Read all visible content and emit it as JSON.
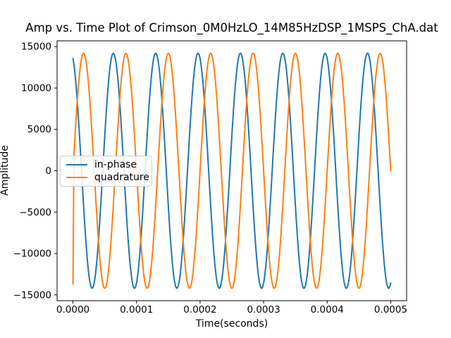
{
  "chart_data": {
    "type": "line",
    "title": "Amp vs. Time Plot of Crimson_0M0HzLO_14M85HzDSP_1MSPS_ChA.dat",
    "xlabel": "Time(seconds)",
    "ylabel": "Amplitude",
    "xlim": [
      -2.5e-05,
      0.000525
    ],
    "ylim": [
      -15700,
      15700
    ],
    "grid": false,
    "background_color": "#ffffff",
    "spine_color": "#000000",
    "x_ticks": {
      "values": [
        0.0,
        0.0001,
        0.0002,
        0.0003,
        0.0004,
        0.0005
      ],
      "labels": [
        "0.0000",
        "0.0001",
        "0.0002",
        "0.0003",
        "0.0004",
        "0.0005"
      ]
    },
    "y_ticks": {
      "values": [
        15000,
        10000,
        5000,
        0,
        -5000,
        -10000,
        -15000
      ],
      "labels": [
        "15000",
        "10000",
        "5000",
        "0",
        "−5000",
        "−10000",
        "−15000"
      ]
    },
    "legend": {
      "location": "center-left",
      "entries": [
        {
          "label": "in-phase",
          "color": "#1f77b4"
        },
        {
          "label": "quadrature",
          "color": "#ff7f0e"
        }
      ]
    },
    "series": [
      {
        "name": "in-phase",
        "color": "#1f77b4",
        "waveform": "sinusoid",
        "amplitude": 14200,
        "frequency_hz": 15000,
        "phase_rad": 1.87,
        "t_start": 0,
        "t_end": 0.0005
      },
      {
        "name": "quadrature",
        "color": "#ff7f0e",
        "waveform": "sinusoid",
        "amplitude": 14200,
        "frequency_hz": 15000,
        "phase_rad": 0,
        "t_start": 1.5e-06,
        "t_end": 0.0005,
        "lead_in_point": {
          "t": 0,
          "y": -13700
        }
      }
    ],
    "line_width": 2
  }
}
